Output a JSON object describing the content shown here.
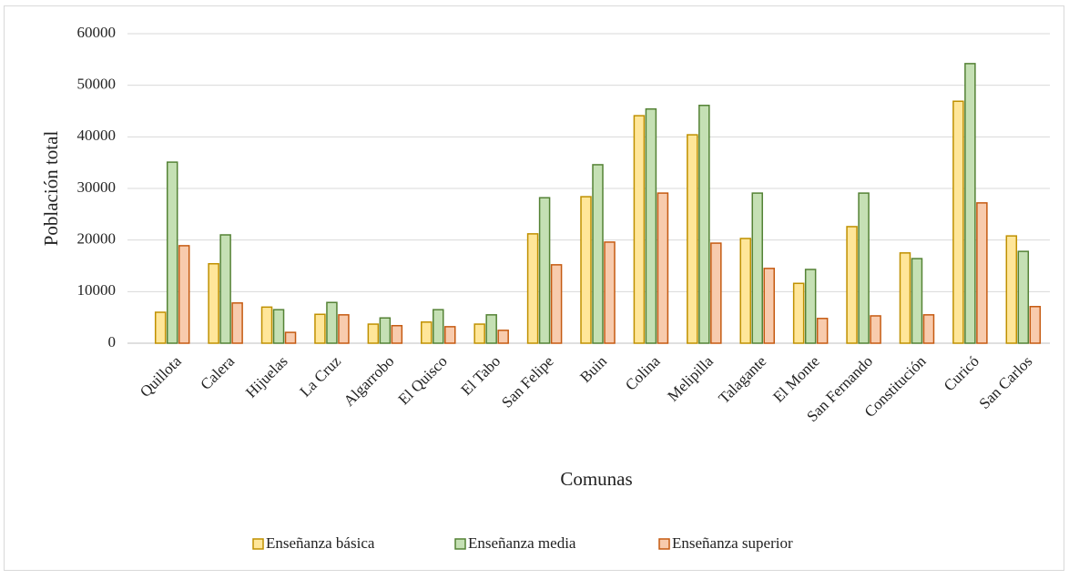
{
  "chart_data": {
    "type": "bar",
    "y_label": "Población total",
    "x_label": "Comunas",
    "categories": [
      "Quillota",
      "Calera",
      "Hijuelas",
      "La Cruz",
      "Algarrobo",
      "El Quisco",
      "El Tabo",
      "San Felipe",
      "Buin",
      "Colina",
      "Melipilla",
      "Talagante",
      "El Monte",
      "San Fernando",
      "Constitución",
      "Curicó",
      "San Carlos"
    ],
    "series": [
      {
        "name": "Enseñanza básica",
        "color": "#ffe699",
        "edge_color": "#bf9000",
        "values": [
          6000,
          15400,
          7000,
          5600,
          3700,
          4100,
          3700,
          21200,
          28400,
          44100,
          40400,
          20300,
          11600,
          22600,
          17500,
          46900,
          20800
        ]
      },
      {
        "name": "Enseñanza media",
        "color": "#c5e0b4",
        "edge_color": "#548235",
        "values": [
          35100,
          21000,
          6500,
          7900,
          4900,
          6500,
          5500,
          28200,
          34600,
          45400,
          46100,
          29100,
          14300,
          29100,
          16400,
          54200,
          17800
        ]
      },
      {
        "name": "Enseñanza superior",
        "color": "#f8cbad",
        "edge_color": "#c55a11",
        "values": [
          18900,
          7800,
          2100,
          5500,
          3400,
          3200,
          2500,
          15200,
          19600,
          29100,
          19400,
          14500,
          4800,
          5300,
          5500,
          27200,
          7100
        ]
      }
    ],
    "ylim": [
      0,
      60000
    ],
    "yticks": [
      0,
      10000,
      20000,
      30000,
      40000,
      50000,
      60000
    ],
    "grid": true,
    "legend": "bottom"
  }
}
